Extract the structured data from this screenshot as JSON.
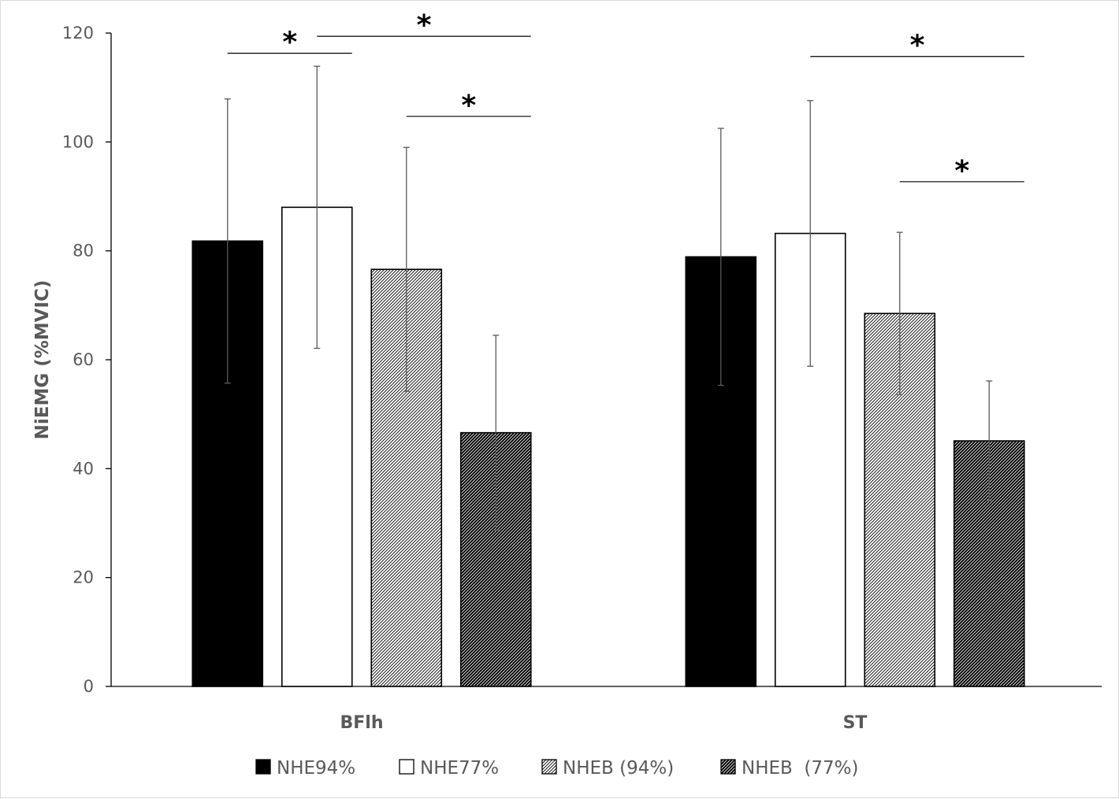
{
  "chart_data": {
    "type": "bar",
    "title": "",
    "xlabel": "",
    "ylabel": "NiEMG (%MVIC)",
    "ylim": [
      0,
      120
    ],
    "yticks": [
      0,
      20,
      40,
      60,
      80,
      100,
      120
    ],
    "grid": false,
    "legend_position": "bottom",
    "categories": [
      "BFlh",
      "ST"
    ],
    "series": [
      {
        "name": "NHE94%",
        "fill": "solid-black",
        "color": "#000000",
        "values": [
          81.8,
          78.9
        ],
        "errors": [
          26.1,
          23.6
        ]
      },
      {
        "name": "NHE77%",
        "fill": "white",
        "color": "#ffffff",
        "values": [
          88.0,
          83.2
        ],
        "errors": [
          25.9,
          24.4
        ]
      },
      {
        "name": "NHEB (94%)",
        "fill": "light-diagonal-hatch",
        "color": "#000000",
        "values": [
          76.6,
          68.5
        ],
        "errors": [
          22.4,
          14.9
        ]
      },
      {
        "name": "NHEB  (77%)",
        "fill": "dark-diagonal-hatch",
        "color": "#000000",
        "values": [
          46.6,
          45.1
        ],
        "errors": [
          17.9,
          11.0
        ]
      }
    ],
    "significance": [
      {
        "category": "BFlh",
        "from_series": 0,
        "to_series": 1,
        "symbol": "*",
        "level": 116.3
      },
      {
        "category": "BFlh",
        "from_series": 1,
        "to_series": 3,
        "symbol": "*",
        "level": 119.4
      },
      {
        "category": "BFlh",
        "from_series": 2,
        "to_series": 3,
        "symbol": "*",
        "level": 104.7
      },
      {
        "category": "ST",
        "from_series": 1,
        "to_series": 3,
        "symbol": "*",
        "level": 115.7
      },
      {
        "category": "ST",
        "from_series": 2,
        "to_series": 3,
        "symbol": "*",
        "level": 92.7
      }
    ]
  }
}
